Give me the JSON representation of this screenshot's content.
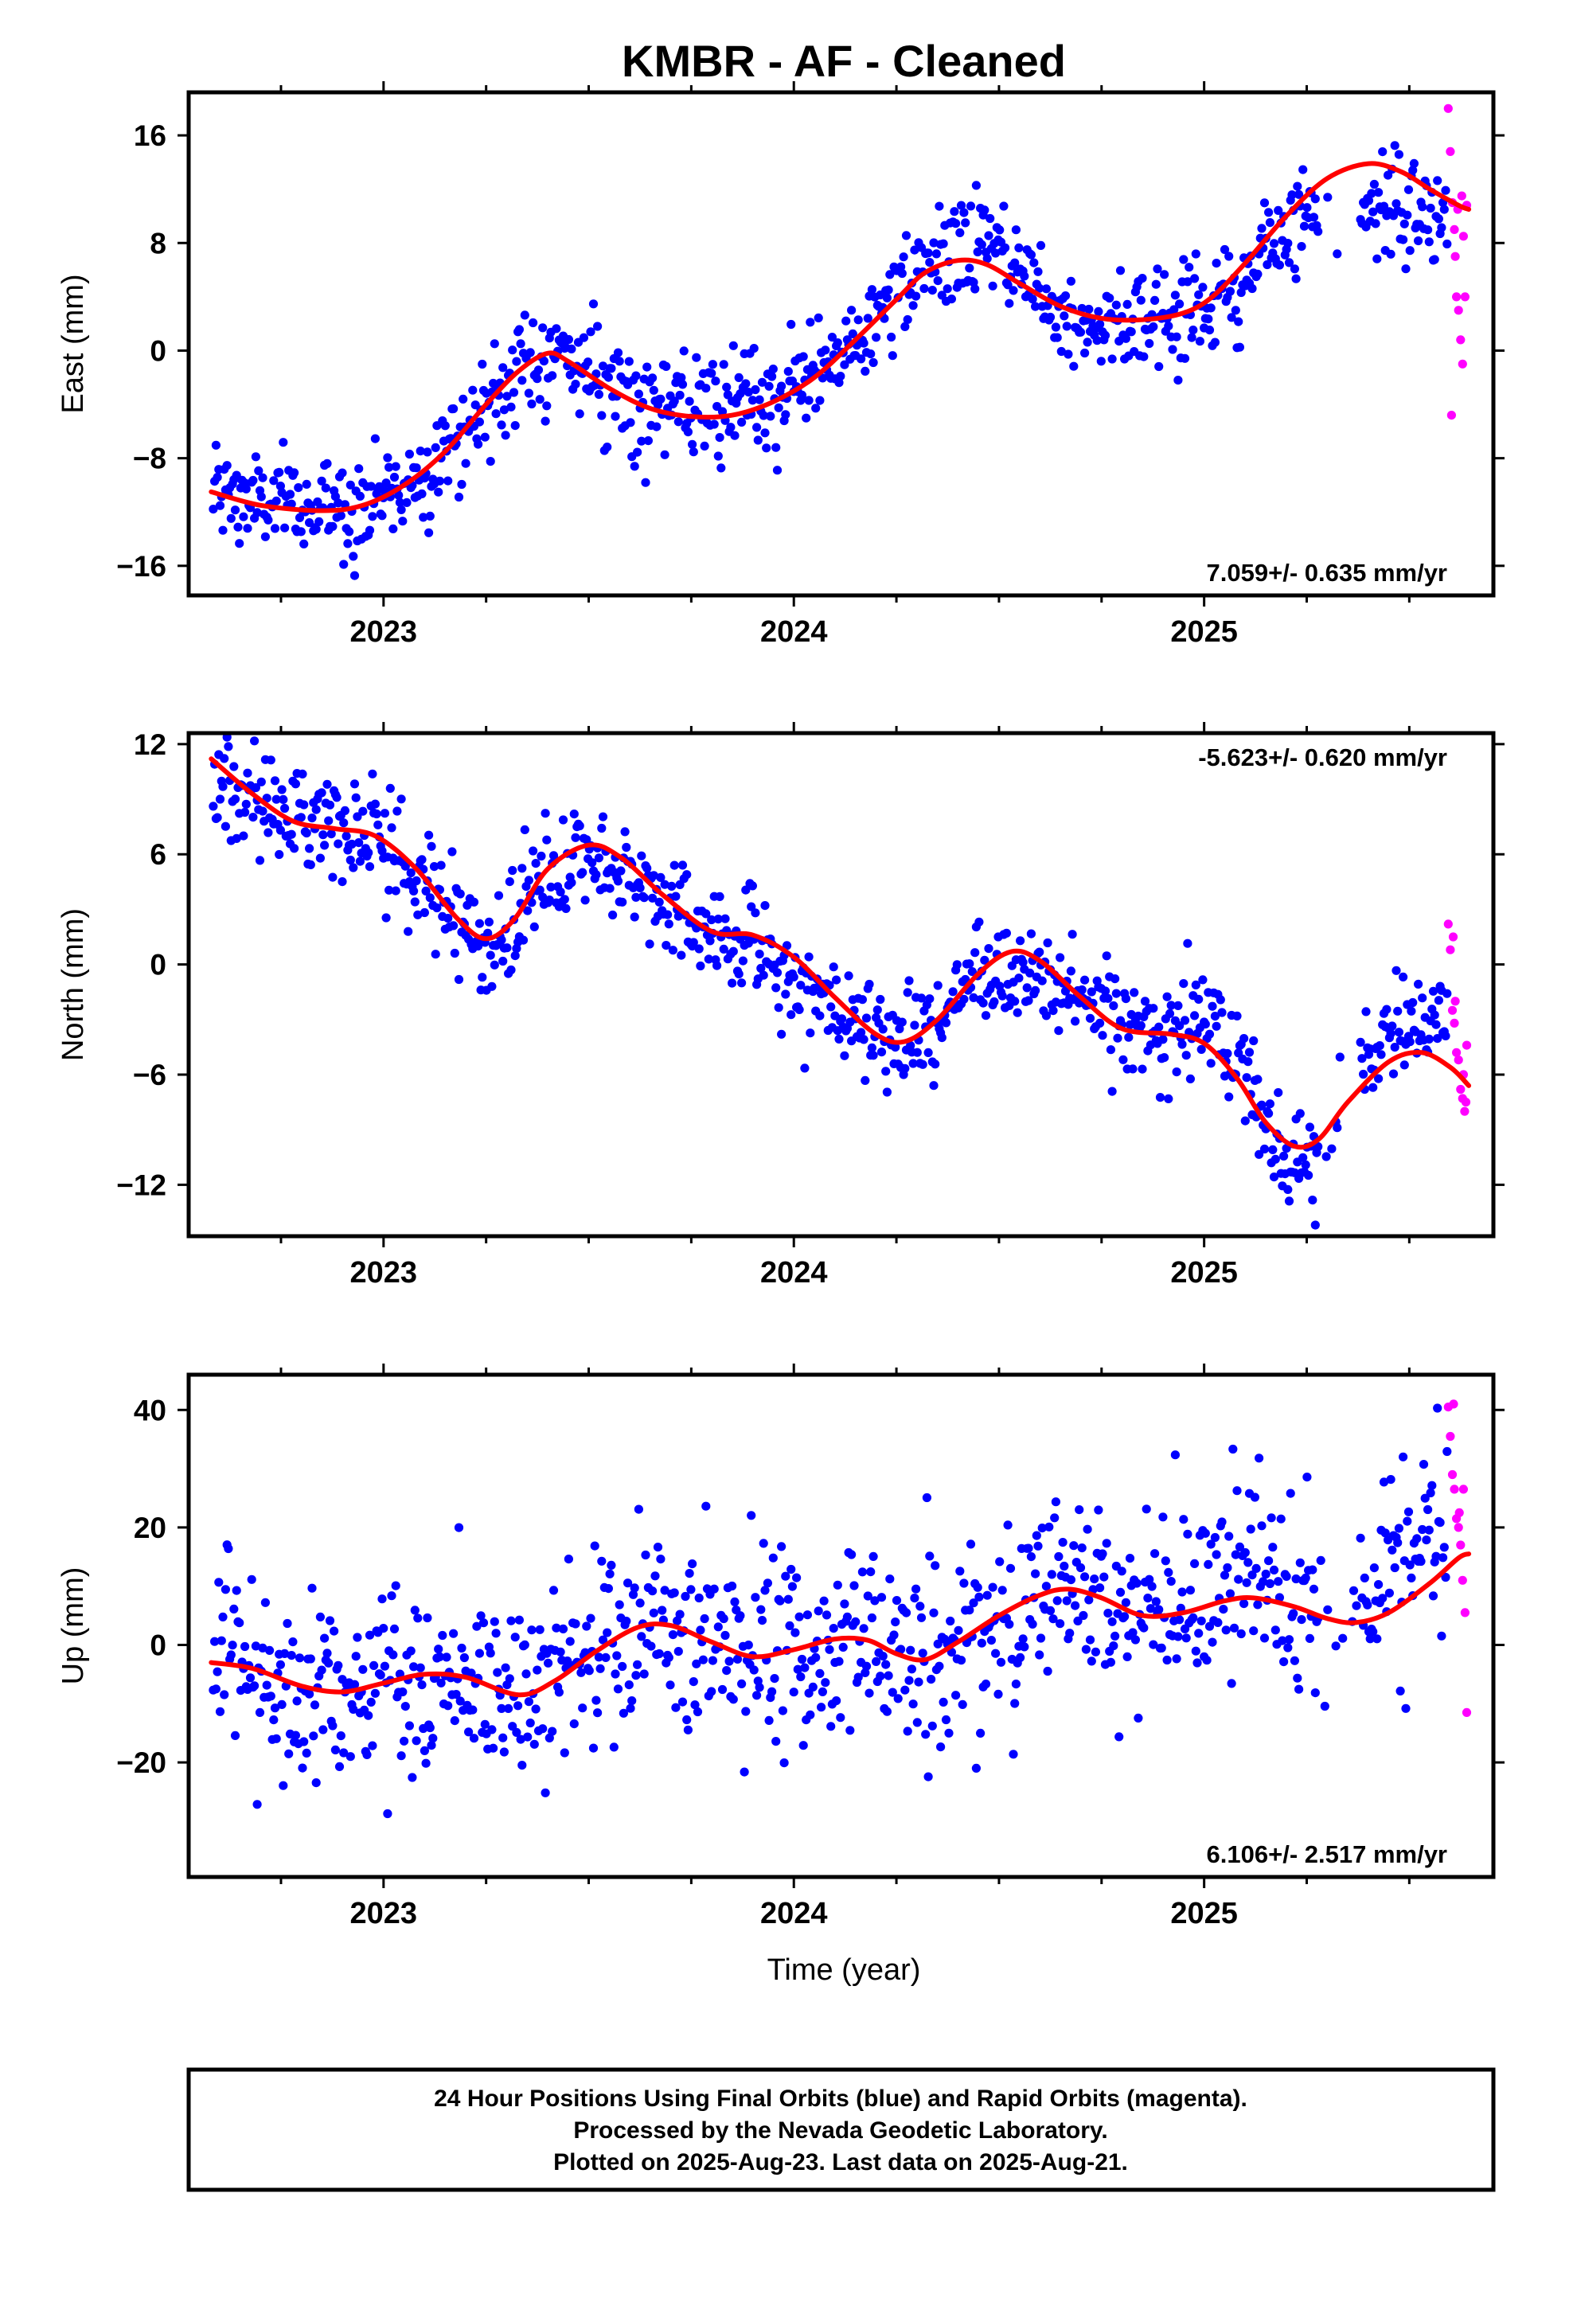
{
  "title": "KMBR  - AF - Cleaned",
  "colors": {
    "final": "#0000ff",
    "rapid": "#ff00ff",
    "fit": "#ff0000",
    "frame": "#000000"
  },
  "footer": {
    "line1": "24 Hour Positions Using Final Orbits (blue) and Rapid Orbits (magenta).",
    "line2": "Processed by the Nevada Geodetic Laboratory.",
    "line3": "Plotted on 2025-Aug-23. Last data on 2025-Aug-21."
  },
  "xlabel": "Time (year)",
  "chart_data": [
    {
      "type": "scatter",
      "id": "east",
      "ylabel": "East (mm)",
      "rate": "7.059+/- 0.635 mm/yr",
      "xlim": [
        2022.525,
        2025.705
      ],
      "ylim": [
        -18.2,
        19.2
      ],
      "yticks": [
        -16,
        -8,
        0,
        8,
        16
      ],
      "xticks": [
        2023,
        2024,
        2025
      ],
      "fit": [
        [
          2022.58,
          -10.5
        ],
        [
          2022.7,
          -11.5
        ],
        [
          2022.85,
          -11.9
        ],
        [
          2022.95,
          -11.5
        ],
        [
          2023.05,
          -10.0
        ],
        [
          2023.15,
          -7.5
        ],
        [
          2023.25,
          -4.0
        ],
        [
          2023.33,
          -1.5
        ],
        [
          2023.4,
          -0.2
        ],
        [
          2023.45,
          -0.8
        ],
        [
          2023.55,
          -2.8
        ],
        [
          2023.65,
          -4.3
        ],
        [
          2023.75,
          -4.9
        ],
        [
          2023.85,
          -4.8
        ],
        [
          2023.95,
          -3.8
        ],
        [
          2024.05,
          -2.0
        ],
        [
          2024.15,
          0.8
        ],
        [
          2024.25,
          3.8
        ],
        [
          2024.32,
          5.8
        ],
        [
          2024.4,
          6.7
        ],
        [
          2024.47,
          6.4
        ],
        [
          2024.55,
          5.0
        ],
        [
          2024.65,
          3.3
        ],
        [
          2024.75,
          2.4
        ],
        [
          2024.85,
          2.3
        ],
        [
          2024.95,
          2.8
        ],
        [
          2025.02,
          4.0
        ],
        [
          2025.1,
          6.5
        ],
        [
          2025.2,
          10.0
        ],
        [
          2025.3,
          12.8
        ],
        [
          2025.4,
          13.9
        ],
        [
          2025.48,
          13.3
        ],
        [
          2025.55,
          12.0
        ],
        [
          2025.62,
          10.8
        ],
        [
          2025.645,
          10.5
        ]
      ],
      "anchors": [
        [
          2022.58,
          -10.5
        ],
        [
          2022.7,
          -11.3
        ],
        [
          2022.85,
          -11.8
        ],
        [
          2022.95,
          -11.4
        ],
        [
          2023.05,
          -10.0
        ],
        [
          2023.15,
          -7.5
        ],
        [
          2023.25,
          -4.0
        ],
        [
          2023.33,
          -1.5
        ],
        [
          2023.4,
          -0.2
        ],
        [
          2023.45,
          -0.5
        ],
        [
          2023.55,
          -2.5
        ],
        [
          2023.65,
          -4.0
        ],
        [
          2023.75,
          -4.6
        ],
        [
          2023.85,
          -4.5
        ],
        [
          2023.95,
          -3.6
        ],
        [
          2024.05,
          -2.0
        ],
        [
          2024.15,
          0.8
        ],
        [
          2024.25,
          3.8
        ],
        [
          2024.32,
          5.8
        ],
        [
          2024.4,
          7.5
        ],
        [
          2024.47,
          8.5
        ],
        [
          2024.55,
          6.0
        ],
        [
          2024.65,
          3.0
        ],
        [
          2024.75,
          2.0
        ],
        [
          2024.85,
          2.3
        ],
        [
          2024.95,
          2.8
        ],
        [
          2025.02,
          3.5
        ],
        [
          2025.1,
          5.0
        ],
        [
          2025.2,
          9.0
        ],
        [
          2025.27,
          11.0
        ],
        [
          2025.35,
          11.5
        ],
        [
          2025.45,
          10.5
        ],
        [
          2025.55,
          9.8
        ],
        [
          2025.62,
          10.0
        ]
      ],
      "noise": 1.9,
      "gaps": [
        [
          2025.28,
          2025.38
        ]
      ],
      "rapid": [
        [
          2025.595,
          18.0
        ],
        [
          2025.6,
          14.8
        ],
        [
          2025.605,
          11.0
        ],
        [
          2025.61,
          9.0
        ],
        [
          2025.612,
          7.0
        ],
        [
          2025.615,
          4.0
        ],
        [
          2025.62,
          3.0
        ],
        [
          2025.625,
          0.8
        ],
        [
          2025.63,
          -1.0
        ],
        [
          2025.603,
          -4.8
        ],
        [
          2025.618,
          10.5
        ],
        [
          2025.628,
          11.5
        ],
        [
          2025.632,
          8.5
        ],
        [
          2025.636,
          4.0
        ],
        [
          2025.64,
          10.8
        ]
      ]
    },
    {
      "type": "scatter",
      "id": "north",
      "ylabel": "North (mm)",
      "rate": "-5.623+/- 0.620 mm/yr",
      "xlim": [
        2022.525,
        2025.705
      ],
      "ylim": [
        -14.8,
        12.6
      ],
      "yticks": [
        -12,
        -6,
        0,
        6,
        12
      ],
      "xticks": [
        2023,
        2024,
        2025
      ],
      "fit": [
        [
          2022.58,
          11.2
        ],
        [
          2022.68,
          9.3
        ],
        [
          2022.78,
          7.8
        ],
        [
          2022.88,
          7.4
        ],
        [
          2022.98,
          7.0
        ],
        [
          2023.08,
          5.2
        ],
        [
          2023.18,
          2.5
        ],
        [
          2023.25,
          1.4
        ],
        [
          2023.32,
          2.5
        ],
        [
          2023.4,
          5.2
        ],
        [
          2023.5,
          6.5
        ],
        [
          2023.58,
          5.8
        ],
        [
          2023.68,
          3.8
        ],
        [
          2023.8,
          1.8
        ],
        [
          2023.9,
          1.6
        ],
        [
          2024.0,
          0.4
        ],
        [
          2024.1,
          -1.8
        ],
        [
          2024.2,
          -3.8
        ],
        [
          2024.27,
          -4.2
        ],
        [
          2024.35,
          -3.0
        ],
        [
          2024.45,
          -0.5
        ],
        [
          2024.53,
          0.7
        ],
        [
          2024.6,
          0.2
        ],
        [
          2024.7,
          -1.8
        ],
        [
          2024.8,
          -3.5
        ],
        [
          2024.92,
          -3.8
        ],
        [
          2025.0,
          -4.3
        ],
        [
          2025.08,
          -6.2
        ],
        [
          2025.15,
          -8.6
        ],
        [
          2025.22,
          -9.9
        ],
        [
          2025.28,
          -9.5
        ],
        [
          2025.35,
          -7.5
        ],
        [
          2025.45,
          -5.3
        ],
        [
          2025.53,
          -4.8
        ],
        [
          2025.6,
          -5.6
        ],
        [
          2025.645,
          -6.6
        ]
      ],
      "anchors": [
        [
          2022.58,
          10.0
        ],
        [
          2022.68,
          9.0
        ],
        [
          2022.78,
          8.0
        ],
        [
          2022.88,
          8.0
        ],
        [
          2022.98,
          7.2
        ],
        [
          2023.08,
          5.0
        ],
        [
          2023.18,
          2.5
        ],
        [
          2023.25,
          0.6
        ],
        [
          2023.32,
          2.0
        ],
        [
          2023.4,
          5.0
        ],
        [
          2023.5,
          5.8
        ],
        [
          2023.58,
          5.0
        ],
        [
          2023.68,
          3.5
        ],
        [
          2023.8,
          1.5
        ],
        [
          2023.9,
          1.5
        ],
        [
          2024.0,
          -1.0
        ],
        [
          2024.1,
          -2.5
        ],
        [
          2024.2,
          -4.0
        ],
        [
          2024.27,
          -4.5
        ],
        [
          2024.35,
          -3.0
        ],
        [
          2024.45,
          -0.5
        ],
        [
          2024.53,
          -0.3
        ],
        [
          2024.6,
          -1.0
        ],
        [
          2024.7,
          -1.5
        ],
        [
          2024.8,
          -3.5
        ],
        [
          2024.92,
          -3.5
        ],
        [
          2025.0,
          -3.0
        ],
        [
          2025.08,
          -4.0
        ],
        [
          2025.13,
          -8.0
        ],
        [
          2025.2,
          -10.8
        ],
        [
          2025.25,
          -11.0
        ],
        [
          2025.28,
          -10.5
        ],
        [
          2025.38,
          -4.5
        ],
        [
          2025.45,
          -4.0
        ],
        [
          2025.53,
          -3.0
        ],
        [
          2025.6,
          -2.0
        ]
      ],
      "noise": 1.4,
      "gaps": [
        [
          2025.28,
          2025.38
        ]
      ],
      "rapid": [
        [
          2025.595,
          2.2
        ],
        [
          2025.6,
          0.8
        ],
        [
          2025.605,
          -2.5
        ],
        [
          2025.61,
          -3.2
        ],
        [
          2025.615,
          -4.8
        ],
        [
          2025.62,
          -5.2
        ],
        [
          2025.625,
          -6.8
        ],
        [
          2025.63,
          -7.3
        ],
        [
          2025.635,
          -8.0
        ],
        [
          2025.64,
          -4.4
        ],
        [
          2025.607,
          1.5
        ],
        [
          2025.612,
          -2.0
        ],
        [
          2025.632,
          -6.0
        ],
        [
          2025.638,
          -7.5
        ]
      ]
    },
    {
      "type": "scatter",
      "id": "up",
      "ylabel": "Up (mm)",
      "rate": "6.106+/- 2.517 mm/yr",
      "xlim": [
        2022.525,
        2025.705
      ],
      "ylim": [
        -39.5,
        46.0
      ],
      "yticks": [
        -20,
        0,
        20,
        40
      ],
      "xticks": [
        2023,
        2024,
        2025
      ],
      "fit": [
        [
          2022.58,
          -3.0
        ],
        [
          2022.68,
          -4.0
        ],
        [
          2022.8,
          -7.0
        ],
        [
          2022.9,
          -8.0
        ],
        [
          2023.0,
          -6.5
        ],
        [
          2023.1,
          -5.0
        ],
        [
          2023.2,
          -5.5
        ],
        [
          2023.33,
          -8.5
        ],
        [
          2023.42,
          -6.0
        ],
        [
          2023.52,
          -1.0
        ],
        [
          2023.62,
          3.0
        ],
        [
          2023.7,
          3.3
        ],
        [
          2023.8,
          0.5
        ],
        [
          2023.9,
          -2.0
        ],
        [
          2024.0,
          -0.8
        ],
        [
          2024.1,
          1.0
        ],
        [
          2024.18,
          0.8
        ],
        [
          2024.25,
          -1.5
        ],
        [
          2024.32,
          -2.5
        ],
        [
          2024.4,
          0.5
        ],
        [
          2024.5,
          5.0
        ],
        [
          2024.6,
          8.5
        ],
        [
          2024.67,
          9.5
        ],
        [
          2024.75,
          8.0
        ],
        [
          2024.85,
          5.0
        ],
        [
          2024.95,
          5.5
        ],
        [
          2025.05,
          7.5
        ],
        [
          2025.12,
          8.0
        ],
        [
          2025.22,
          6.5
        ],
        [
          2025.3,
          4.5
        ],
        [
          2025.37,
          3.8
        ],
        [
          2025.45,
          5.5
        ],
        [
          2025.55,
          10.5
        ],
        [
          2025.62,
          14.8
        ],
        [
          2025.645,
          15.5
        ]
      ],
      "anchors": [
        [
          2022.58,
          -3.0
        ],
        [
          2022.68,
          -4.0
        ],
        [
          2022.8,
          -7.0
        ],
        [
          2022.9,
          -8.0
        ],
        [
          2023.0,
          -6.5
        ],
        [
          2023.1,
          -5.0
        ],
        [
          2023.2,
          -5.5
        ],
        [
          2023.33,
          -8.5
        ],
        [
          2023.42,
          -6.0
        ],
        [
          2023.52,
          -1.0
        ],
        [
          2023.62,
          3.0
        ],
        [
          2023.7,
          3.3
        ],
        [
          2023.8,
          0.5
        ],
        [
          2023.9,
          -2.0
        ],
        [
          2024.0,
          -0.8
        ],
        [
          2024.1,
          1.0
        ],
        [
          2024.18,
          0.8
        ],
        [
          2024.25,
          -1.5
        ],
        [
          2024.32,
          -2.5
        ],
        [
          2024.4,
          0.5
        ],
        [
          2024.5,
          5.0
        ],
        [
          2024.6,
          8.5
        ],
        [
          2024.67,
          9.5
        ],
        [
          2024.75,
          8.0
        ],
        [
          2024.85,
          5.0
        ],
        [
          2024.95,
          5.5
        ],
        [
          2025.05,
          9.0
        ],
        [
          2025.12,
          14.0
        ],
        [
          2025.22,
          9.0
        ],
        [
          2025.28,
          3.0
        ],
        [
          2025.4,
          5.0
        ],
        [
          2025.45,
          12.0
        ],
        [
          2025.55,
          17.0
        ],
        [
          2025.62,
          15.0
        ]
      ],
      "noise": 8.5,
      "gaps": [
        [
          2025.28,
          2025.38
        ]
      ],
      "rapid": [
        [
          2025.595,
          40.5
        ],
        [
          2025.6,
          35.5
        ],
        [
          2025.605,
          29.0
        ],
        [
          2025.61,
          26.5
        ],
        [
          2025.615,
          21.5
        ],
        [
          2025.62,
          20.0
        ],
        [
          2025.625,
          17.0
        ],
        [
          2025.63,
          11.0
        ],
        [
          2025.636,
          5.5
        ],
        [
          2025.64,
          -11.5
        ],
        [
          2025.608,
          41.0
        ],
        [
          2025.622,
          22.5
        ],
        [
          2025.632,
          26.5
        ]
      ]
    }
  ]
}
